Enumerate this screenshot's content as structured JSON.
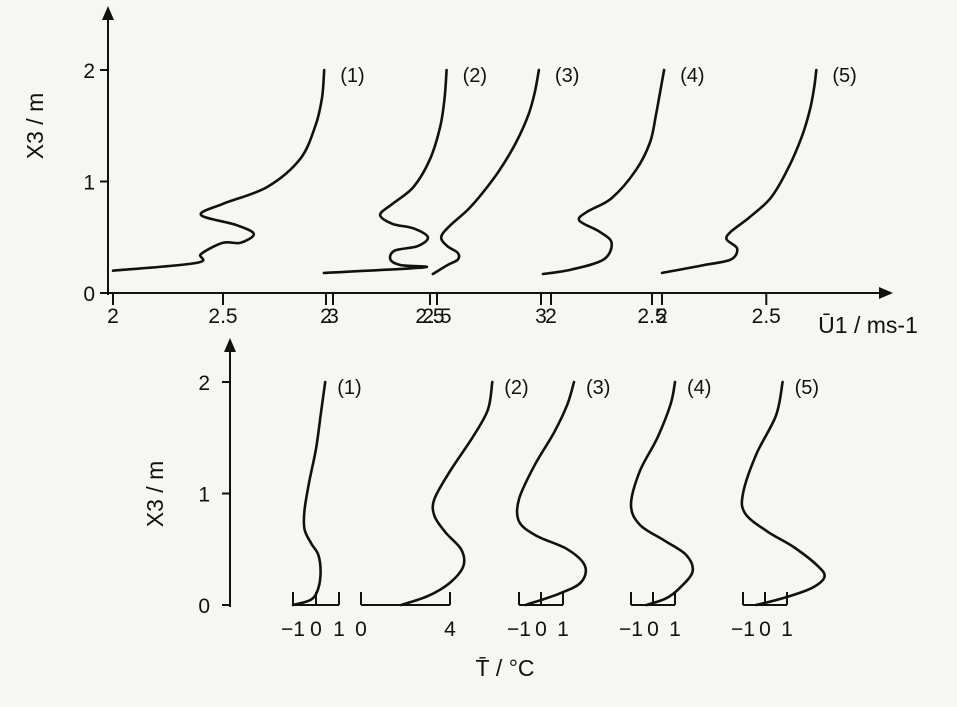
{
  "chart_data": [
    {
      "type": "line",
      "ylabel": "X3 / m",
      "xlabel": "Ū1 / ms-1",
      "ylim": [
        0,
        2
      ],
      "y_ticks": [
        "0",
        "1",
        "2"
      ],
      "grid": false,
      "panels": [
        {
          "x_ticks": [
            "2",
            "2.5",
            "3"
          ],
          "xlim": [
            2,
            3
          ]
        },
        {
          "x_ticks": [
            "2",
            "2.5"
          ],
          "xlim": [
            2,
            2.5
          ]
        },
        {
          "x_ticks": [
            "2.5",
            "3"
          ],
          "xlim": [
            2.5,
            3
          ]
        },
        {
          "x_ticks": [
            "2",
            "2.5"
          ],
          "xlim": [
            2,
            2.5
          ]
        },
        {
          "x_ticks": [
            "2",
            "2.5"
          ],
          "xlim": [
            2,
            2.7
          ]
        }
      ],
      "series": [
        {
          "name": "(1)",
          "panel": 0,
          "points": [
            [
              2.0,
              0.2
            ],
            [
              2.38,
              0.27
            ],
            [
              2.4,
              0.35
            ],
            [
              2.5,
              0.45
            ],
            [
              2.58,
              0.45
            ],
            [
              2.64,
              0.53
            ],
            [
              2.56,
              0.61
            ],
            [
              2.4,
              0.7
            ],
            [
              2.5,
              0.8
            ],
            [
              2.7,
              0.95
            ],
            [
              2.85,
              1.2
            ],
            [
              2.92,
              1.5
            ],
            [
              2.95,
              1.75
            ],
            [
              2.96,
              2.0
            ]
          ]
        },
        {
          "name": "(2)",
          "panel": 1,
          "points": [
            [
              1.99,
              0.18
            ],
            [
              2.47,
              0.23
            ],
            [
              2.36,
              0.25
            ],
            [
              2.31,
              0.3
            ],
            [
              2.33,
              0.38
            ],
            [
              2.44,
              0.42
            ],
            [
              2.49,
              0.5
            ],
            [
              2.42,
              0.58
            ],
            [
              2.32,
              0.62
            ],
            [
              2.26,
              0.7
            ],
            [
              2.32,
              0.8
            ],
            [
              2.42,
              0.95
            ],
            [
              2.5,
              1.2
            ],
            [
              2.55,
              1.5
            ],
            [
              2.57,
              1.75
            ],
            [
              2.58,
              2.0
            ]
          ]
        },
        {
          "name": "(3)",
          "panel": 2,
          "points": [
            [
              2.48,
              0.17
            ],
            [
              2.55,
              0.25
            ],
            [
              2.6,
              0.3
            ],
            [
              2.6,
              0.36
            ],
            [
              2.55,
              0.42
            ],
            [
              2.52,
              0.5
            ],
            [
              2.56,
              0.6
            ],
            [
              2.65,
              0.75
            ],
            [
              2.72,
              0.9
            ],
            [
              2.8,
              1.1
            ],
            [
              2.88,
              1.35
            ],
            [
              2.94,
              1.6
            ],
            [
              2.97,
              1.8
            ],
            [
              2.99,
              2.0
            ]
          ]
        },
        {
          "name": "(4)",
          "panel": 3,
          "points": [
            [
              1.96,
              0.17
            ],
            [
              2.1,
              0.21
            ],
            [
              2.26,
              0.3
            ],
            [
              2.3,
              0.45
            ],
            [
              2.24,
              0.55
            ],
            [
              2.14,
              0.65
            ],
            [
              2.18,
              0.73
            ],
            [
              2.3,
              0.85
            ],
            [
              2.42,
              1.1
            ],
            [
              2.49,
              1.35
            ],
            [
              2.52,
              1.6
            ],
            [
              2.54,
              1.8
            ],
            [
              2.56,
              2.0
            ]
          ]
        },
        {
          "name": "(5)",
          "panel": 4,
          "points": [
            [
              2.0,
              0.18
            ],
            [
              2.2,
              0.25
            ],
            [
              2.33,
              0.3
            ],
            [
              2.36,
              0.4
            ],
            [
              2.31,
              0.48
            ],
            [
              2.33,
              0.55
            ],
            [
              2.42,
              0.68
            ],
            [
              2.52,
              0.85
            ],
            [
              2.6,
              1.1
            ],
            [
              2.67,
              1.4
            ],
            [
              2.71,
              1.65
            ],
            [
              2.73,
              1.85
            ],
            [
              2.74,
              2.0
            ]
          ]
        }
      ]
    },
    {
      "type": "line",
      "ylabel": "X3 / m",
      "xlabel": "T̄ / °C",
      "ylim": [
        0,
        2
      ],
      "y_ticks": [
        "0",
        "1",
        "2"
      ],
      "grid": false,
      "panels": [
        {
          "x_ticks": [
            "-1",
            "0",
            "1"
          ],
          "xlim": [
            -1,
            1
          ]
        },
        {
          "x_ticks": [
            "0",
            "4"
          ],
          "xlim": [
            0,
            4
          ]
        },
        {
          "x_ticks": [
            "-1",
            "0",
            "1"
          ],
          "xlim": [
            -1,
            1
          ]
        },
        {
          "x_ticks": [
            "-1",
            "0",
            "1"
          ],
          "xlim": [
            -1,
            1
          ]
        },
        {
          "x_ticks": [
            "-1",
            "0",
            "1"
          ],
          "xlim": [
            -1,
            1
          ]
        }
      ],
      "series": [
        {
          "name": "(1)",
          "panel": 0,
          "points": [
            [
              -1.0,
              0.0
            ],
            [
              -0.2,
              0.05
            ],
            [
              0.1,
              0.15
            ],
            [
              0.2,
              0.3
            ],
            [
              0.1,
              0.45
            ],
            [
              -0.2,
              0.55
            ],
            [
              -0.5,
              0.68
            ],
            [
              -0.5,
              0.85
            ],
            [
              -0.3,
              1.1
            ],
            [
              0.0,
              1.4
            ],
            [
              0.2,
              1.7
            ],
            [
              0.4,
              2.0
            ]
          ]
        },
        {
          "name": "(2)",
          "panel": 1,
          "points": [
            [
              1.8,
              0.0
            ],
            [
              3.0,
              0.08
            ],
            [
              4.0,
              0.2
            ],
            [
              4.6,
              0.35
            ],
            [
              4.5,
              0.5
            ],
            [
              3.8,
              0.65
            ],
            [
              3.3,
              0.8
            ],
            [
              3.3,
              0.95
            ],
            [
              4.0,
              1.2
            ],
            [
              5.0,
              1.5
            ],
            [
              5.7,
              1.75
            ],
            [
              5.9,
              2.0
            ]
          ]
        },
        {
          "name": "(3)",
          "panel": 2,
          "points": [
            [
              -0.7,
              0.0
            ],
            [
              0.8,
              0.1
            ],
            [
              1.8,
              0.2
            ],
            [
              2.0,
              0.35
            ],
            [
              1.2,
              0.5
            ],
            [
              -0.2,
              0.62
            ],
            [
              -1.0,
              0.75
            ],
            [
              -1.0,
              0.95
            ],
            [
              -0.3,
              1.25
            ],
            [
              0.6,
              1.55
            ],
            [
              1.2,
              1.8
            ],
            [
              1.5,
              2.0
            ]
          ]
        },
        {
          "name": "(4)",
          "panel": 3,
          "points": [
            [
              -0.3,
              0.0
            ],
            [
              0.6,
              0.06
            ],
            [
              1.2,
              0.15
            ],
            [
              1.8,
              0.3
            ],
            [
              1.5,
              0.45
            ],
            [
              0.5,
              0.58
            ],
            [
              -0.6,
              0.72
            ],
            [
              -1.0,
              0.9
            ],
            [
              -0.6,
              1.2
            ],
            [
              0.2,
              1.5
            ],
            [
              0.8,
              1.8
            ],
            [
              1.0,
              2.0
            ]
          ]
        },
        {
          "name": "(5)",
          "panel": 4,
          "points": [
            [
              -0.4,
              0.0
            ],
            [
              0.8,
              0.06
            ],
            [
              2.1,
              0.15
            ],
            [
              2.7,
              0.25
            ],
            [
              2.4,
              0.35
            ],
            [
              1.3,
              0.52
            ],
            [
              0.1,
              0.66
            ],
            [
              -0.9,
              0.82
            ],
            [
              -1.0,
              1.0
            ],
            [
              -0.4,
              1.35
            ],
            [
              0.5,
              1.7
            ],
            [
              0.8,
              2.0
            ]
          ]
        }
      ]
    }
  ]
}
